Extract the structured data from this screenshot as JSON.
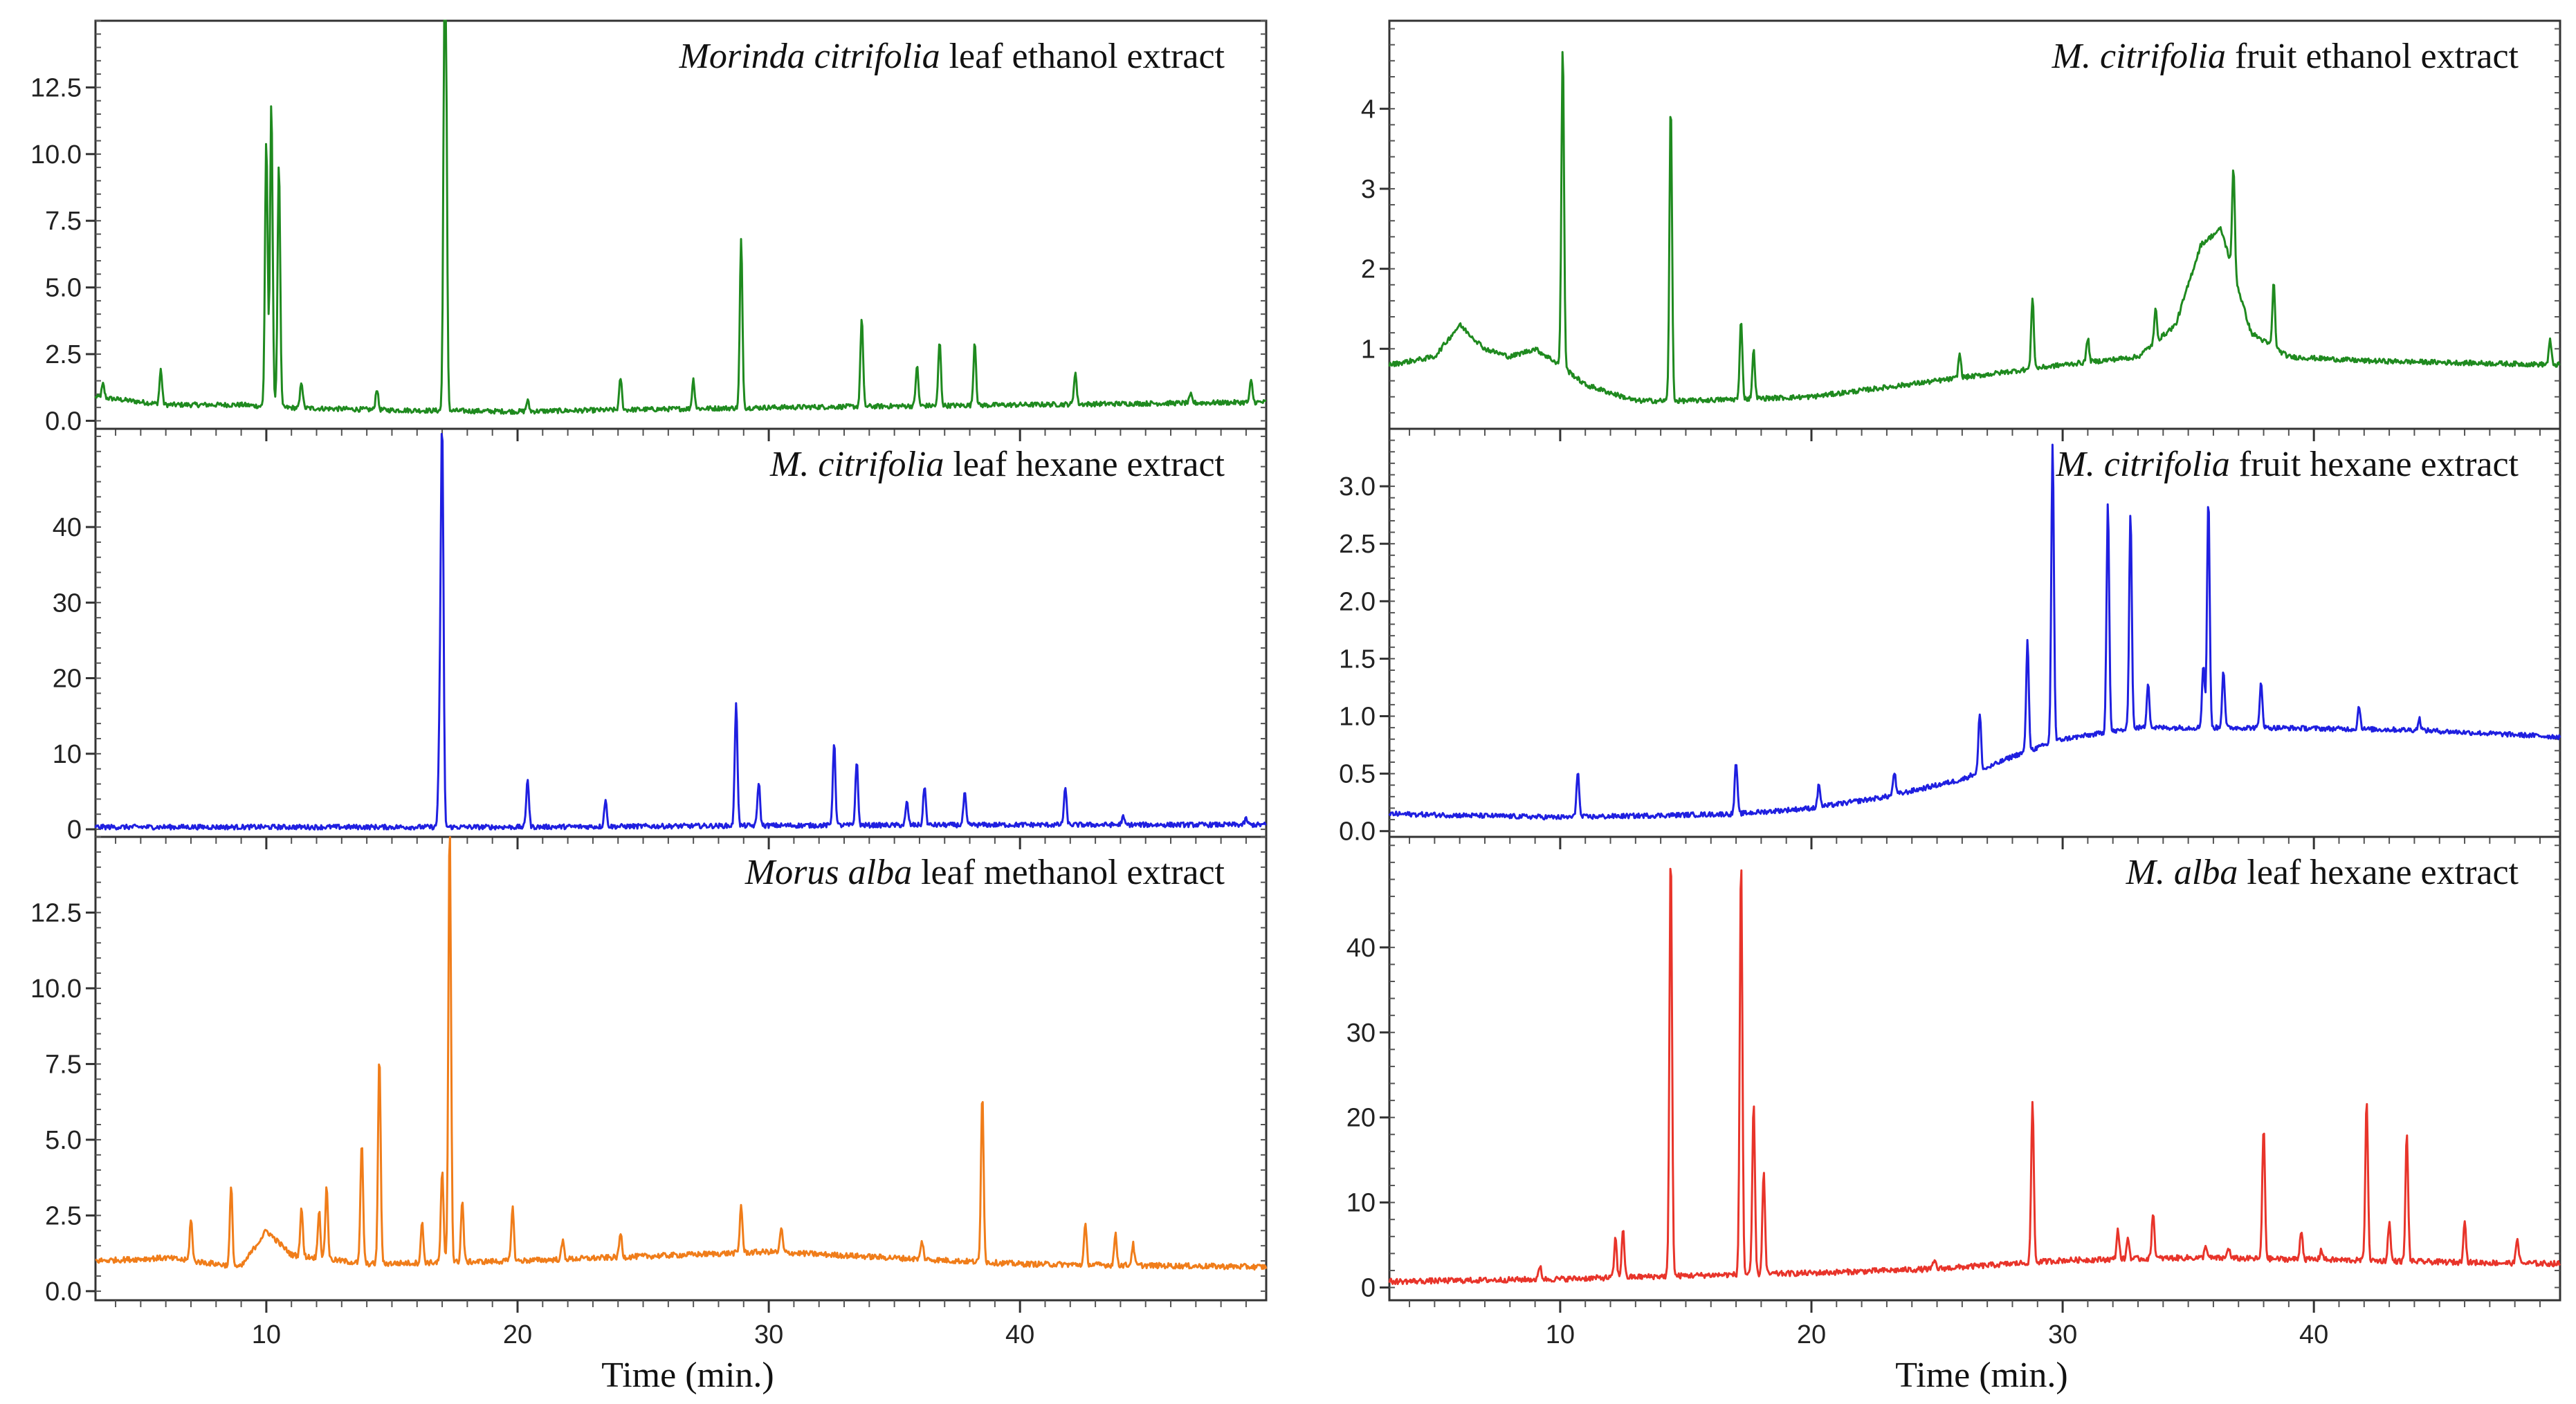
{
  "chart_data": [
    {
      "type": "line",
      "title": "Morinda citrifolia leaf ethanol extract",
      "title_italic": "Morinda citrifolia",
      "title_rest": " leaf ethanol extract",
      "color": "#1f8a1f",
      "xlabel": "",
      "xlim": [
        3.2,
        49.8
      ],
      "ylim": [
        -0.3,
        15.0
      ],
      "yticks": [
        0.0,
        2.5,
        5.0,
        7.5,
        10.0,
        12.5
      ],
      "yticklabels": [
        "0.0",
        "2.5",
        "5.0",
        "7.5",
        "10.0",
        "12.5"
      ],
      "baseline": [
        [
          3.2,
          0.9
        ],
        [
          6,
          0.6
        ],
        [
          9,
          0.6
        ],
        [
          10.5,
          0.5
        ],
        [
          15,
          0.4
        ],
        [
          20,
          0.35
        ],
        [
          30,
          0.5
        ],
        [
          40,
          0.6
        ],
        [
          49.8,
          0.7
        ]
      ],
      "peaks": [
        [
          3.5,
          0.5
        ],
        [
          5.8,
          1.3
        ],
        [
          10.0,
          10.0
        ],
        [
          10.2,
          11.4
        ],
        [
          10.5,
          9.2
        ],
        [
          11.4,
          1.0
        ],
        [
          14.4,
          0.8
        ],
        [
          17.1,
          14.5
        ],
        [
          17.15,
          8.0
        ],
        [
          20.4,
          0.4
        ],
        [
          24.1,
          1.2
        ],
        [
          27.0,
          1.1
        ],
        [
          28.9,
          6.3
        ],
        [
          33.7,
          3.3
        ],
        [
          35.9,
          1.5
        ],
        [
          36.8,
          2.4
        ],
        [
          38.2,
          2.4
        ],
        [
          42.2,
          1.2
        ],
        [
          46.8,
          0.3
        ],
        [
          49.2,
          0.8
        ]
      ]
    },
    {
      "type": "line",
      "title": "M. citrifolia leaf hexane extract",
      "title_italic": "M. citrifolia",
      "title_rest": " leaf hexane extract",
      "color": "#1f1fe0",
      "xlabel": "",
      "xlim": [
        3.2,
        49.8
      ],
      "ylim": [
        -1,
        53
      ],
      "yticks": [
        0,
        10,
        20,
        30,
        40
      ],
      "yticklabels": [
        "0",
        "10",
        "20",
        "30",
        "40"
      ],
      "baseline": [
        [
          3.2,
          0.3
        ],
        [
          20,
          0.3
        ],
        [
          30,
          0.5
        ],
        [
          40,
          0.6
        ],
        [
          49.8,
          0.6
        ]
      ],
      "peaks": [
        [
          16.9,
          11.5
        ],
        [
          17.0,
          52
        ],
        [
          20.4,
          6.5
        ],
        [
          23.5,
          3.5
        ],
        [
          28.7,
          16.5
        ],
        [
          29.6,
          5.8
        ],
        [
          32.6,
          11.0
        ],
        [
          33.5,
          8.5
        ],
        [
          35.5,
          3.0
        ],
        [
          36.2,
          5.2
        ],
        [
          37.8,
          4.2
        ],
        [
          41.8,
          4.8
        ],
        [
          44.1,
          1.0
        ],
        [
          49.0,
          0.8
        ]
      ]
    },
    {
      "type": "line",
      "title": "Morus alba leaf methanol extract",
      "title_italic": "Morus alba",
      "title_rest": " leaf methanol extract",
      "color": "#f07d1a",
      "xlabel": "Time (min.)",
      "xlim": [
        3.2,
        49.8
      ],
      "ylim": [
        -0.3,
        15.0
      ],
      "yticks": [
        0.0,
        2.5,
        5.0,
        7.5,
        10.0,
        12.5
      ],
      "yticklabels": [
        "0.0",
        "2.5",
        "5.0",
        "7.5",
        "10.0",
        "12.5"
      ],
      "xticks": [
        10,
        20,
        30,
        40
      ],
      "xticklabels": [
        "10",
        "20",
        "30",
        "40"
      ],
      "baseline": [
        [
          3.2,
          1.0
        ],
        [
          6,
          1.1
        ],
        [
          9,
          0.8
        ],
        [
          10,
          2.0
        ],
        [
          11,
          1.2
        ],
        [
          14,
          0.9
        ],
        [
          20,
          1.0
        ],
        [
          30,
          1.3
        ],
        [
          40,
          0.9
        ],
        [
          49.8,
          0.8
        ]
      ],
      "peaks": [
        [
          7.0,
          1.4
        ],
        [
          8.6,
          2.6
        ],
        [
          11.4,
          1.6
        ],
        [
          12.1,
          1.6
        ],
        [
          12.4,
          2.4
        ],
        [
          13.8,
          4.0
        ],
        [
          14.5,
          6.9
        ],
        [
          16.2,
          1.3
        ],
        [
          17.0,
          3.0
        ],
        [
          17.3,
          14.5
        ],
        [
          17.8,
          2.0
        ],
        [
          19.8,
          1.8
        ],
        [
          21.8,
          0.6
        ],
        [
          24.1,
          0.8
        ],
        [
          28.9,
          1.6
        ],
        [
          30.5,
          0.8
        ],
        [
          36.1,
          0.6
        ],
        [
          38.5,
          5.6
        ],
        [
          42.6,
          1.3
        ],
        [
          43.8,
          1.0
        ],
        [
          44.5,
          0.7
        ]
      ]
    },
    {
      "type": "line",
      "title": "M. citrifolia fruit ethanol extract",
      "title_italic": "M. citrifolia",
      "title_rest": " fruit ethanol extract",
      "color": "#1f8a1f",
      "xlabel": "",
      "xlim": [
        3.2,
        49.8
      ],
      "ylim": [
        0,
        5.1
      ],
      "yticks": [
        1,
        2,
        3,
        4
      ],
      "yticklabels": [
        "1",
        "2",
        "3",
        "4"
      ],
      "baseline": [
        [
          3.2,
          0.8
        ],
        [
          5,
          0.9
        ],
        [
          6,
          1.3
        ],
        [
          7,
          1.0
        ],
        [
          8,
          0.9
        ],
        [
          9,
          1.0
        ],
        [
          10,
          0.8
        ],
        [
          11,
          0.55
        ],
        [
          13,
          0.35
        ],
        [
          15,
          0.35
        ],
        [
          20,
          0.4
        ],
        [
          25,
          0.6
        ],
        [
          30,
          0.8
        ],
        [
          33,
          0.9
        ],
        [
          34.5,
          1.3
        ],
        [
          35.5,
          2.3
        ],
        [
          36.3,
          2.5
        ],
        [
          37.5,
          1.2
        ],
        [
          39,
          0.9
        ],
        [
          42,
          0.85
        ],
        [
          49.8,
          0.8
        ]
      ],
      "peaks": [
        [
          10.1,
          4.0
        ],
        [
          14.4,
          3.7
        ],
        [
          17.2,
          1.0
        ],
        [
          17.7,
          0.6
        ],
        [
          25.9,
          0.3
        ],
        [
          28.8,
          0.9
        ],
        [
          31.0,
          0.3
        ],
        [
          33.7,
          0.4
        ],
        [
          36.8,
          1.3
        ],
        [
          38.4,
          0.8
        ],
        [
          49.4,
          0.3
        ]
      ]
    },
    {
      "type": "line",
      "title": "M. citrifolia fruit hexane extract",
      "title_italic": "M. citrifolia",
      "title_rest": " fruit hexane extract",
      "color": "#1f1fe0",
      "xlabel": "",
      "xlim": [
        3.2,
        49.8
      ],
      "ylim": [
        -0.05,
        3.5
      ],
      "yticks": [
        0.0,
        0.5,
        1.0,
        1.5,
        2.0,
        2.5,
        3.0
      ],
      "yticklabels": [
        "0.0",
        "0.5",
        "1.0",
        "1.5",
        "2.0",
        "2.5",
        "3.0"
      ],
      "baseline": [
        [
          3.2,
          0.15
        ],
        [
          10,
          0.12
        ],
        [
          17,
          0.15
        ],
        [
          20,
          0.2
        ],
        [
          23,
          0.3
        ],
        [
          26,
          0.45
        ],
        [
          28,
          0.65
        ],
        [
          30,
          0.8
        ],
        [
          33,
          0.9
        ],
        [
          38,
          0.9
        ],
        [
          44,
          0.88
        ],
        [
          49.8,
          0.82
        ]
      ],
      "peaks": [
        [
          10.7,
          0.4
        ],
        [
          17.0,
          0.45
        ],
        [
          20.3,
          0.2
        ],
        [
          23.3,
          0.2
        ],
        [
          26.7,
          0.5
        ],
        [
          28.6,
          0.95
        ],
        [
          29.6,
          2.6
        ],
        [
          31.8,
          2.0
        ],
        [
          32.7,
          1.9
        ],
        [
          33.4,
          0.4
        ],
        [
          35.6,
          0.55
        ],
        [
          35.8,
          2.0
        ],
        [
          36.4,
          0.5
        ],
        [
          37.9,
          0.4
        ],
        [
          41.8,
          0.2
        ],
        [
          44.2,
          0.1
        ]
      ]
    },
    {
      "type": "line",
      "title": "M. alba leaf hexane extract",
      "title_italic": "M. alba",
      "title_rest": " leaf hexane extract",
      "color": "#e8342a",
      "xlabel": "Time (min.)",
      "xlim": [
        3.2,
        49.8
      ],
      "ylim": [
        -1.5,
        53
      ],
      "yticks": [
        0,
        10,
        20,
        30,
        40
      ],
      "yticklabels": [
        "0",
        "10",
        "20",
        "30",
        "40"
      ],
      "xticks": [
        10,
        20,
        30,
        40
      ],
      "xticklabels": [
        "10",
        "20",
        "30",
        "40"
      ],
      "baseline": [
        [
          3.2,
          0.7
        ],
        [
          10,
          1.0
        ],
        [
          15,
          1.4
        ],
        [
          20,
          1.7
        ],
        [
          25,
          2.2
        ],
        [
          30,
          3.2
        ],
        [
          35,
          3.5
        ],
        [
          40,
          3.3
        ],
        [
          45,
          3.0
        ],
        [
          49.8,
          2.8
        ]
      ],
      "peaks": [
        [
          9.2,
          1.6
        ],
        [
          12.2,
          4.6
        ],
        [
          12.5,
          5.8
        ],
        [
          14.4,
          50
        ],
        [
          17.2,
          49
        ],
        [
          17.7,
          20
        ],
        [
          18.1,
          12
        ],
        [
          24.9,
          1.0
        ],
        [
          28.8,
          19
        ],
        [
          32.2,
          3.5
        ],
        [
          32.6,
          2.5
        ],
        [
          33.6,
          5.5
        ],
        [
          35.7,
          1.5
        ],
        [
          36.6,
          1.3
        ],
        [
          38.0,
          15.5
        ],
        [
          39.5,
          3.5
        ],
        [
          40.3,
          1.2
        ],
        [
          42.1,
          19
        ],
        [
          43.0,
          4.5
        ],
        [
          43.7,
          15
        ],
        [
          46.0,
          5.0
        ],
        [
          48.1,
          3.0
        ]
      ]
    }
  ]
}
